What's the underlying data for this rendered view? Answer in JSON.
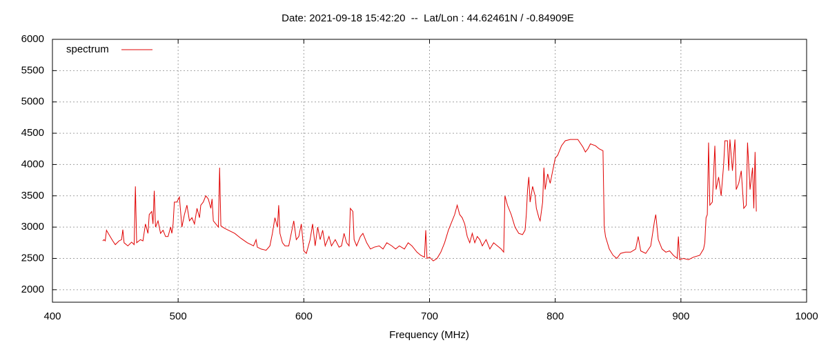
{
  "chart_data": {
    "type": "line",
    "title": "Date: 2021-09-18 15:42:20  --  Lat/Lon : 44.62461N / -0.84909E",
    "x_label": "Frequency (MHz)",
    "xlim": [
      400,
      1000
    ],
    "xticks": [
      400,
      500,
      600,
      700,
      800,
      900,
      1000
    ],
    "ylim": [
      1800,
      6000
    ],
    "yticks": [
      2000,
      2500,
      3000,
      3500,
      4000,
      4500,
      5000,
      5500,
      6000
    ],
    "grid": true,
    "legend": "top-left",
    "x": [
      440,
      441,
      442,
      443,
      445,
      448,
      450,
      453,
      455,
      456,
      457,
      460,
      463,
      465,
      466,
      467,
      470,
      472,
      474,
      476,
      477,
      479,
      480,
      481,
      482,
      484,
      486,
      488,
      490,
      492,
      494,
      495,
      496,
      497,
      499,
      501,
      503,
      505,
      507,
      509,
      511,
      513,
      515,
      517,
      518,
      520,
      522,
      524,
      526,
      527,
      528,
      530,
      532,
      533,
      534,
      537,
      540,
      545,
      550,
      555,
      560,
      562,
      563,
      566,
      570,
      573,
      575,
      577,
      579,
      580,
      581,
      583,
      585,
      588,
      590,
      592,
      594,
      596,
      598,
      600,
      602,
      605,
      607,
      609,
      611,
      613,
      615,
      617,
      620,
      622,
      625,
      628,
      630,
      632,
      634,
      636,
      637,
      639,
      640,
      642,
      645,
      647,
      650,
      653,
      656,
      660,
      663,
      666,
      670,
      673,
      676,
      680,
      683,
      686,
      690,
      693,
      696,
      697,
      698,
      700,
      703,
      706,
      709,
      712,
      715,
      718,
      720,
      722,
      724,
      726,
      728,
      730,
      732,
      734,
      736,
      738,
      740,
      742,
      745,
      748,
      751,
      754,
      757,
      759,
      760,
      762,
      765,
      768,
      771,
      774,
      776,
      777,
      778,
      779,
      780,
      782,
      784,
      785,
      787,
      788,
      790,
      791,
      792,
      794,
      796,
      798,
      800,
      802,
      805,
      808,
      812,
      818,
      822,
      824,
      826,
      828,
      832,
      835,
      838,
      839,
      840,
      843,
      846,
      849,
      852,
      856,
      860,
      864,
      866,
      868,
      872,
      876,
      879,
      880,
      882,
      885,
      888,
      891,
      894,
      897,
      898,
      899,
      902,
      906,
      910,
      915,
      918,
      919,
      920,
      921,
      922,
      923,
      925,
      927,
      928,
      930,
      932,
      934,
      935,
      937,
      938,
      939,
      941,
      943,
      944,
      946,
      948,
      950,
      952,
      953,
      955,
      957,
      958,
      959,
      960
    ],
    "series": [
      {
        "name": "spectrum",
        "color": "#e00000",
        "values": [
          2780,
          2800,
          2780,
          2950,
          2880,
          2780,
          2720,
          2780,
          2800,
          2960,
          2750,
          2700,
          2760,
          2720,
          3650,
          2750,
          2800,
          2780,
          3050,
          2900,
          3200,
          3250,
          3050,
          3580,
          3000,
          3100,
          2900,
          2950,
          2850,
          2850,
          3000,
          2900,
          3050,
          3400,
          3400,
          3480,
          3000,
          3200,
          3350,
          3100,
          3150,
          3050,
          3300,
          3150,
          3350,
          3400,
          3500,
          3450,
          3300,
          3450,
          3100,
          3050,
          3000,
          3950,
          3020,
          2980,
          2950,
          2900,
          2820,
          2750,
          2700,
          2800,
          2680,
          2650,
          2630,
          2700,
          2900,
          3150,
          3000,
          3350,
          2900,
          2750,
          2700,
          2700,
          2900,
          3100,
          2800,
          2850,
          3050,
          2620,
          2580,
          2800,
          3050,
          2700,
          3000,
          2800,
          2950,
          2700,
          2850,
          2700,
          2800,
          2680,
          2700,
          2900,
          2750,
          2700,
          3300,
          3250,
          2800,
          2700,
          2850,
          2900,
          2750,
          2650,
          2680,
          2700,
          2650,
          2750,
          2700,
          2650,
          2700,
          2650,
          2750,
          2700,
          2600,
          2550,
          2520,
          2950,
          2500,
          2520,
          2460,
          2500,
          2600,
          2750,
          2950,
          3100,
          3200,
          3350,
          3200,
          3150,
          3050,
          2850,
          2750,
          2900,
          2750,
          2850,
          2800,
          2700,
          2800,
          2650,
          2750,
          2700,
          2650,
          2600,
          3500,
          3350,
          3200,
          3000,
          2900,
          2880,
          2950,
          3200,
          3600,
          3800,
          3400,
          3650,
          3500,
          3300,
          3150,
          3100,
          3400,
          3950,
          3600,
          3850,
          3700,
          3900,
          4100,
          4150,
          4300,
          4380,
          4400,
          4400,
          4280,
          4200,
          4250,
          4330,
          4300,
          4250,
          4220,
          3000,
          2850,
          2650,
          2550,
          2500,
          2580,
          2600,
          2600,
          2650,
          2850,
          2620,
          2580,
          2700,
          3100,
          3200,
          2800,
          2650,
          2600,
          2620,
          2550,
          2500,
          2850,
          2480,
          2500,
          2480,
          2520,
          2550,
          2650,
          2750,
          3150,
          3200,
          4350,
          3350,
          3400,
          4300,
          3600,
          3800,
          3500,
          4000,
          4380,
          4380,
          3900,
          4400,
          3900,
          4400,
          3600,
          3700,
          3900,
          3300,
          3350,
          4350,
          3600,
          3950,
          3300,
          4200,
          3250
        ]
      }
    ]
  }
}
